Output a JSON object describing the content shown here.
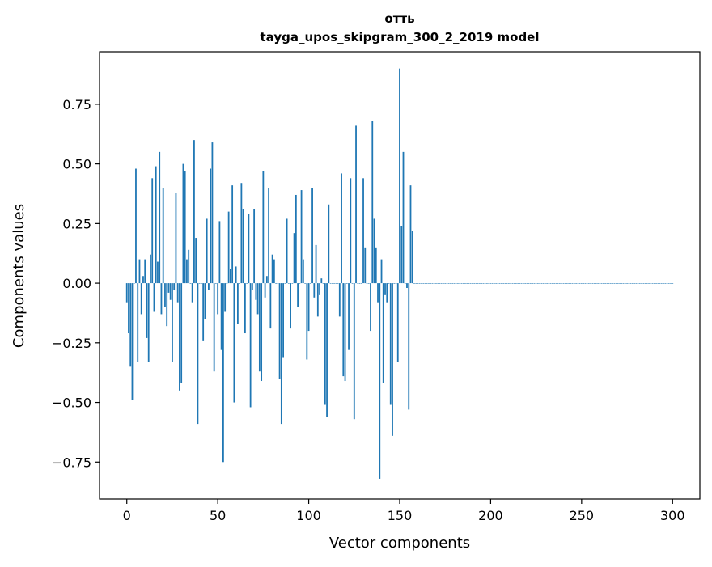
{
  "chart_data": {
    "type": "bar",
    "title_line1": "отть",
    "title_line2": "tayga_upos_skipgram_300_2_2019 model",
    "xlabel": "Vector components",
    "ylabel": "Components values",
    "xlim": [
      -15,
      315
    ],
    "ylim": [
      -0.905,
      0.97
    ],
    "xticks": [
      0,
      50,
      100,
      150,
      200,
      250,
      300
    ],
    "xtick_labels": [
      "0",
      "50",
      "100",
      "150",
      "200",
      "250",
      "300"
    ],
    "yticks": [
      -0.75,
      -0.5,
      -0.25,
      0.0,
      0.25,
      0.5,
      0.75
    ],
    "ytick_labels": [
      "−0.75",
      "−0.50",
      "−0.25",
      "0.00",
      "0.25",
      "0.50",
      "0.75"
    ],
    "grid": false,
    "bar_color": "#1f77b4",
    "values": [
      -0.08,
      -0.21,
      -0.35,
      -0.49,
      0.0,
      0.48,
      -0.33,
      0.1,
      -0.13,
      0.03,
      0.1,
      -0.23,
      -0.33,
      0.12,
      0.44,
      -0.12,
      0.49,
      0.09,
      0.55,
      -0.13,
      0.4,
      -0.1,
      -0.18,
      -0.04,
      -0.07,
      -0.33,
      -0.03,
      0.38,
      -0.08,
      -0.45,
      -0.42,
      0.5,
      0.47,
      0.1,
      0.14,
      0.0,
      -0.08,
      0.6,
      0.19,
      -0.59,
      0.0,
      0.0,
      -0.24,
      -0.15,
      0.27,
      -0.03,
      0.48,
      0.59,
      -0.37,
      0.0,
      -0.13,
      0.26,
      -0.28,
      -0.75,
      -0.12,
      0.0,
      0.3,
      0.06,
      0.41,
      -0.5,
      0.07,
      -0.17,
      0.0,
      0.42,
      0.31,
      -0.21,
      0.0,
      0.29,
      -0.52,
      -0.03,
      0.31,
      -0.07,
      -0.13,
      -0.37,
      -0.41,
      0.47,
      -0.06,
      0.03,
      0.4,
      -0.19,
      0.12,
      0.1,
      0.0,
      0.0,
      -0.4,
      -0.59,
      -0.31,
      0.0,
      0.27,
      0.0,
      -0.19,
      0.0,
      0.21,
      0.37,
      -0.1,
      0.0,
      0.39,
      0.1,
      0.0,
      -0.32,
      -0.2,
      0.0,
      0.4,
      -0.06,
      0.16,
      -0.14,
      -0.05,
      0.02,
      0.0,
      -0.51,
      -0.56,
      0.33,
      0.0,
      0.0,
      0.0,
      0.0,
      0.0,
      -0.14,
      0.46,
      -0.39,
      -0.41,
      0.0,
      -0.28,
      0.44,
      0.0,
      -0.57,
      0.66,
      0.0,
      0.0,
      0.0,
      0.44,
      0.15,
      0.0,
      0.0,
      -0.2,
      0.68,
      0.27,
      0.15,
      -0.08,
      -0.82,
      0.1,
      -0.42,
      -0.05,
      -0.08,
      0.0,
      -0.51,
      -0.64,
      0.0,
      0.0,
      -0.33,
      0.9,
      0.24,
      0.55,
      0.0,
      -0.02,
      -0.53,
      0.41,
      0.22,
      0.0,
      0.0,
      0.0,
      0.0,
      0.0,
      0.0,
      0.0,
      0.0,
      0.0,
      0.0,
      0.0,
      0.0,
      0.0,
      0.0,
      0.0,
      0.0,
      0.0,
      0.0,
      0.0,
      0.0,
      0.0,
      0.0,
      0.0,
      0.0,
      0.0,
      0.0,
      0.0,
      0.0,
      0.0,
      0.0,
      0.0,
      0.0,
      0.0,
      0.0,
      0.0,
      0.0,
      0.0,
      0.0,
      0.0,
      0.0,
      0.0,
      0.0,
      0.0,
      0.0,
      0.0,
      0.0,
      0.0,
      0.0,
      0.0,
      0.0,
      0.0,
      0.0,
      0.0,
      0.0,
      0.0,
      0.0,
      0.0,
      0.0,
      0.0,
      0.0,
      0.0,
      0.0,
      0.0,
      0.0,
      0.0,
      0.0,
      0.0,
      0.0,
      0.0,
      0.0,
      0.0,
      0.0,
      0.0,
      0.0,
      0.0,
      0.0,
      0.0,
      0.0,
      0.0,
      0.0,
      0.0,
      0.0,
      0.0,
      0.0,
      0.0,
      0.0,
      0.0,
      0.0,
      0.0,
      0.0,
      0.0,
      0.0,
      0.0,
      0.0,
      0.0,
      0.0,
      0.0,
      0.0,
      0.0,
      0.0,
      0.0,
      0.0,
      0.0,
      0.0,
      0.0,
      0.0,
      0.0,
      0.0,
      0.0,
      0.0,
      0.0,
      0.0,
      0.0,
      0.0,
      0.0,
      0.0,
      0.0,
      0.0,
      0.0,
      0.0,
      0.0,
      0.0,
      0.0,
      0.0,
      0.0,
      0.0,
      0.0,
      0.0,
      0.0,
      0.0,
      0.0,
      0.0,
      0.0,
      0.0,
      0.0,
      0.0,
      0.0,
      0.0,
      0.0,
      0.0,
      0.0,
      0.0,
      0.0
    ]
  }
}
